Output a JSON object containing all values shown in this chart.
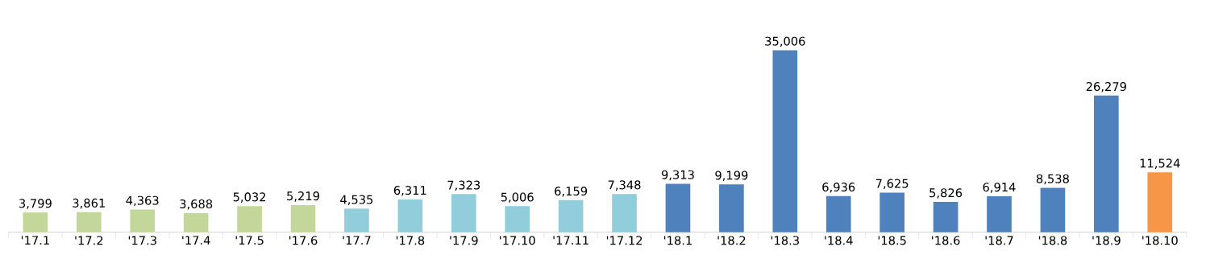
{
  "chart_data": {
    "type": "bar",
    "categories": [
      "'17.1",
      "'17.2",
      "'17.3",
      "'17.4",
      "'17.5",
      "'17.6",
      "'17.7",
      "'17.8",
      "'17.9",
      "'17.10",
      "'17.11",
      "'17.12",
      "'18.1",
      "'18.2",
      "'18.3",
      "'18.4",
      "'18.5",
      "'18.6",
      "'18.7",
      "'18.8",
      "'18.9",
      "'18.10"
    ],
    "values": [
      3799,
      3861,
      4363,
      3688,
      5032,
      5219,
      4535,
      6311,
      7323,
      5006,
      6159,
      7348,
      9313,
      9199,
      35006,
      6936,
      7625,
      5826,
      6914,
      8538,
      26279,
      11524
    ],
    "value_labels": [
      "3,799",
      "3,861",
      "4,363",
      "3,688",
      "5,032",
      "5,219",
      "4,535",
      "6,311",
      "7,323",
      "5,006",
      "6,159",
      "7,348",
      "9,313",
      "9,199",
      "35,006",
      "6,936",
      "7,625",
      "5,826",
      "6,914",
      "8,538",
      "26,279",
      "11,524"
    ],
    "colors": [
      "#c4d79b",
      "#c4d79b",
      "#c4d79b",
      "#c4d79b",
      "#c4d79b",
      "#c4d79b",
      "#92cddc",
      "#92cddc",
      "#92cddc",
      "#92cddc",
      "#92cddc",
      "#92cddc",
      "#4f81bd",
      "#4f81bd",
      "#4f81bd",
      "#4f81bd",
      "#4f81bd",
      "#4f81bd",
      "#4f81bd",
      "#4f81bd",
      "#4f81bd",
      "#f79646"
    ]
  }
}
